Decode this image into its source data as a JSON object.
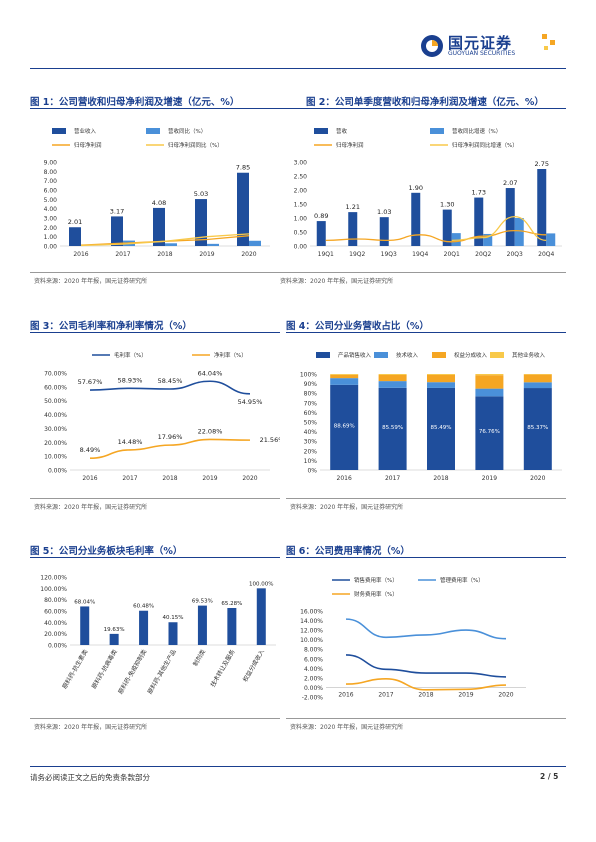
{
  "header": {
    "logo_cn": "国元证券",
    "logo_en": "GUOYUAN SECURITIES"
  },
  "colors": {
    "dark_blue": "#1f4e9c",
    "light_blue": "#4a90d9",
    "orange": "#f5a623",
    "light_orange": "#f8c94a",
    "title_blue": "#1a3f8f"
  },
  "figures": [
    {
      "title": "图 1：公司营收和归母净利润及增速（亿元、%）",
      "source": "资料来源：2020 年年报，国元证券研究所"
    },
    {
      "title": "图 2：公司单季度营收和归母净利润及增速（亿元、%）",
      "source": "资料来源：2020 年年报，国元证券研究所"
    },
    {
      "title": "图 3：公司毛利率和净利率情况（%）",
      "source": "资料来源：2020 年年报，国元证券研究所"
    },
    {
      "title": "图 4：公司分业务营收占比（%）",
      "source": "资料来源：2020 年年报，国元证券研究所"
    },
    {
      "title": "图 5：公司分业务板块毛利率（%）",
      "source": "资料来源：2020 年年报，国元证券研究所"
    },
    {
      "title": "图 6：公司费用率情况（%）",
      "source": "资料来源：2020 年年报，国元证券研究所"
    }
  ],
  "footer": {
    "disclaimer": "请务必阅读正文之后的免责条款部分",
    "page": "2 / 5"
  },
  "chart_data": [
    {
      "type": "bar",
      "categories": [
        "2016",
        "2017",
        "2018",
        "2019",
        "2020"
      ],
      "series": [
        {
          "name": "营业收入",
          "values": [
            2.01,
            3.17,
            4.08,
            5.03,
            7.85
          ]
        },
        {
          "name": "营收同比（%）",
          "values": [
            null,
            0.58,
            0.29,
            0.23,
            0.56
          ]
        },
        {
          "name": "归母净利润",
          "values": [
            0.1,
            0.3,
            0.5,
            0.7,
            1.1
          ]
        },
        {
          "name": "归母净利润同比（%）",
          "values": [
            0.05,
            0.2,
            0.5,
            1.0,
            1.3
          ]
        }
      ],
      "data_labels": [
        "2.01",
        "3.17",
        "4.08",
        "5.03",
        "7.85"
      ],
      "yticks": [
        "0.00",
        "1.00",
        "2.00",
        "3.00",
        "4.00",
        "5.00",
        "6.00",
        "7.00",
        "8.00",
        "9.00"
      ],
      "ylim": [
        0,
        9
      ]
    },
    {
      "type": "bar",
      "categories": [
        "19Q1",
        "19Q2",
        "19Q3",
        "19Q4",
        "20Q1",
        "20Q2",
        "20Q3",
        "20Q4"
      ],
      "series": [
        {
          "name": "营收",
          "values": [
            0.89,
            1.21,
            1.03,
            1.9,
            1.3,
            1.73,
            2.07,
            2.75
          ]
        },
        {
          "name": "营收同比增速（%）",
          "values": [
            null,
            null,
            null,
            null,
            0.46,
            0.43,
            1.0,
            0.45
          ]
        },
        {
          "name": "归母净利润",
          "values": [
            0.2,
            0.25,
            0.2,
            0.4,
            0.15,
            0.35,
            0.55,
            0.4
          ]
        },
        {
          "name": "归母净利润同比增速（%）",
          "values": [
            null,
            null,
            null,
            null,
            0.2,
            0.3,
            1.05,
            0.2
          ]
        }
      ],
      "data_labels": [
        "0.89",
        "1.21",
        "1.03",
        "1.90",
        "1.30",
        "1.73",
        "2.07",
        "2.75"
      ],
      "yticks": [
        "0.00",
        "0.50",
        "1.00",
        "1.50",
        "2.00",
        "2.50",
        "3.00"
      ],
      "ylim": [
        0,
        3
      ]
    },
    {
      "type": "line",
      "x": [
        "2016",
        "2017",
        "2018",
        "2019",
        "2020"
      ],
      "series": [
        {
          "name": "毛利率（%）",
          "values": [
            57.67,
            58.93,
            58.45,
            64.04,
            54.95
          ],
          "labels": [
            "57.67%",
            "58.93%",
            "58.45%",
            "64.04%",
            "54.95%"
          ]
        },
        {
          "name": "净利率（%）",
          "values": [
            8.49,
            14.48,
            17.96,
            22.08,
            21.56
          ],
          "labels": [
            "8.49%",
            "14.48%",
            "17.96%",
            "22.08%",
            "21.56%"
          ]
        }
      ],
      "yticks": [
        "0.00%",
        "10.00%",
        "20.00%",
        "30.00%",
        "40.00%",
        "50.00%",
        "60.00%",
        "70.00%"
      ],
      "ylim": [
        0,
        70
      ]
    },
    {
      "type": "bar",
      "categories": [
        "2016",
        "2017",
        "2018",
        "2019",
        "2020"
      ],
      "series": [
        {
          "name": "产品销售收入",
          "values": [
            88.69,
            85.59,
            85.49,
            76.76,
            85.37
          ],
          "labels": [
            "88.69%",
            "85.59%",
            "85.49%",
            "76.76%",
            "85.37%"
          ]
        },
        {
          "name": "技术收入",
          "values": [
            7,
            7,
            6,
            8,
            6
          ]
        },
        {
          "name": "权益分成收入",
          "values": [
            3.5,
            6.4,
            7.5,
            14,
            8
          ]
        },
        {
          "name": "其他业务收入",
          "values": [
            0.81,
            1.01,
            1.01,
            1.24,
            0.63
          ]
        }
      ],
      "yticks": [
        "0%",
        "10%",
        "20%",
        "30%",
        "40%",
        "50%",
        "60%",
        "70%",
        "80%",
        "90%",
        "100%"
      ],
      "ylim": [
        0,
        100
      ]
    },
    {
      "type": "bar",
      "categories": [
        "原料药-抗生素类",
        "原料药-抗病毒类",
        "原料药-免疫抑制类",
        "原料药-其他生产品",
        "制剂类",
        "技术转让及服务",
        "权益分成收入"
      ],
      "values": [
        68.04,
        19.63,
        60.48,
        40.15,
        69.53,
        65.28,
        100.0
      ],
      "labels": [
        "68.04%",
        "19.63%",
        "60.48%",
        "40.15%",
        "69.53%",
        "65.28%",
        "100.00%"
      ],
      "yticks": [
        "0.00%",
        "20.00%",
        "40.00%",
        "60.00%",
        "80.00%",
        "100.00%",
        "120.00%"
      ],
      "ylim": [
        0,
        120
      ]
    },
    {
      "type": "line",
      "x": [
        "2016",
        "2017",
        "2018",
        "2019",
        "2020"
      ],
      "series": [
        {
          "name": "销售费用率（%）",
          "values": [
            6.8,
            3.8,
            3.0,
            3.0,
            2.2
          ]
        },
        {
          "name": "管理费用率（%）",
          "values": [
            14.3,
            10.5,
            11.0,
            12.0,
            10.2
          ]
        },
        {
          "name": "财务费用率（%）",
          "values": [
            0.7,
            1.8,
            -0.5,
            -0.4,
            0.5
          ]
        }
      ],
      "yticks": [
        "-2.00%",
        "0.00%",
        "2.00%",
        "4.00%",
        "6.00%",
        "8.00%",
        "10.00%",
        "12.00%",
        "14.00%",
        "16.00%"
      ],
      "ylim": [
        -2,
        16
      ]
    }
  ]
}
